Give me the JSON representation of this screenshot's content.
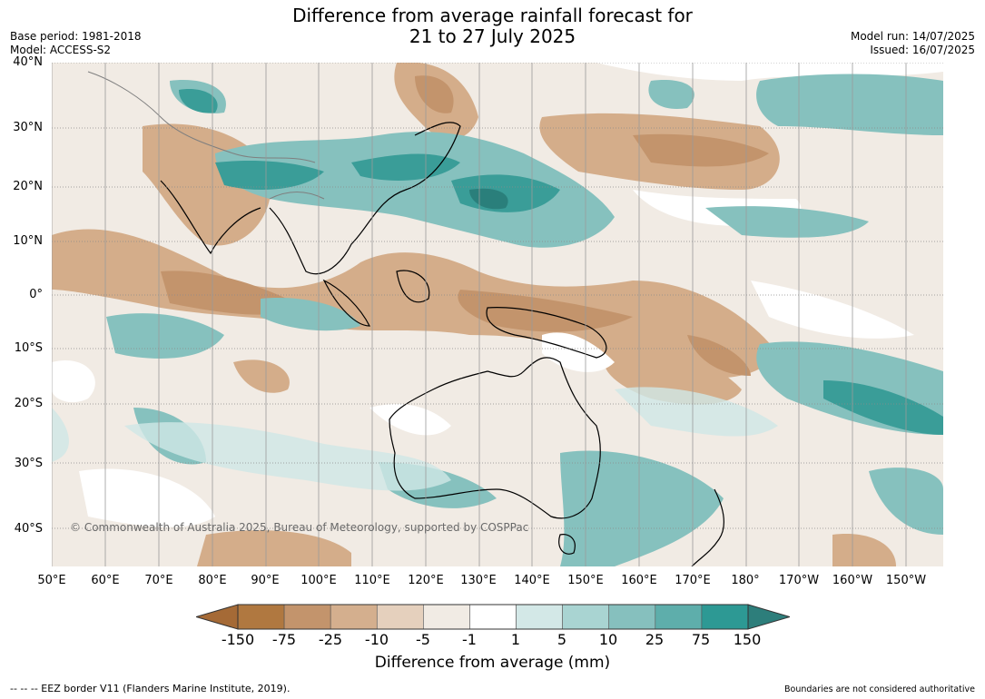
{
  "title": {
    "line1": "Difference from average rainfall forecast for",
    "line2": "21 to 27 July 2025"
  },
  "meta": {
    "base_period": "Base period: 1981-2018",
    "model": "Model: ACCESS-S2",
    "model_run": "Model run: 14/07/2025",
    "issued": "Issued: 16/07/2025"
  },
  "map": {
    "copyright": "© Commonwealth of Australia 2025, Bureau of Meteorology, supported by COSPPac",
    "lat_labels": [
      "40°N",
      "30°N",
      "20°N",
      "10°N",
      "0°",
      "10°S",
      "20°S",
      "30°S",
      "40°S"
    ],
    "lon_labels": [
      "50°E",
      "60°E",
      "70°E",
      "80°E",
      "90°E",
      "100°E",
      "110°E",
      "120°E",
      "130°E",
      "140°E",
      "150°E",
      "160°E",
      "170°E",
      "180°",
      "170°W",
      "160°W",
      "150°W"
    ],
    "colors": {
      "dry_strong": "#a86f3c",
      "dry": "#d4ad8a",
      "dry_light": "#e8d3c0",
      "near_zero": "#ffffff",
      "wet_light": "#d0e7e6",
      "wet": "#86c1be",
      "wet_strong": "#3a9d98",
      "land_outline": "#000000",
      "border_outline": "#7f7f7f",
      "grid": "#8a8a8a"
    }
  },
  "colorbar": {
    "ticks": [
      "-150",
      "-75",
      "-25",
      "-10",
      "-5",
      "-1",
      "1",
      "5",
      "10",
      "25",
      "75",
      "150"
    ],
    "colors": [
      "#a56a36",
      "#b07840",
      "#c3946c",
      "#d4af8e",
      "#e5d0bd",
      "#f1ebe4",
      "#ffffff",
      "#d3e8e7",
      "#a9d4d2",
      "#86c0be",
      "#5eaeab",
      "#2d9994",
      "#2d7e7b"
    ],
    "title": "Difference from average (mm)"
  },
  "footer": {
    "legend": "--  --  -- EEZ border V11 (Flanders Marine Institute, 2019).",
    "note": "Boundaries are not considered authoritative"
  }
}
